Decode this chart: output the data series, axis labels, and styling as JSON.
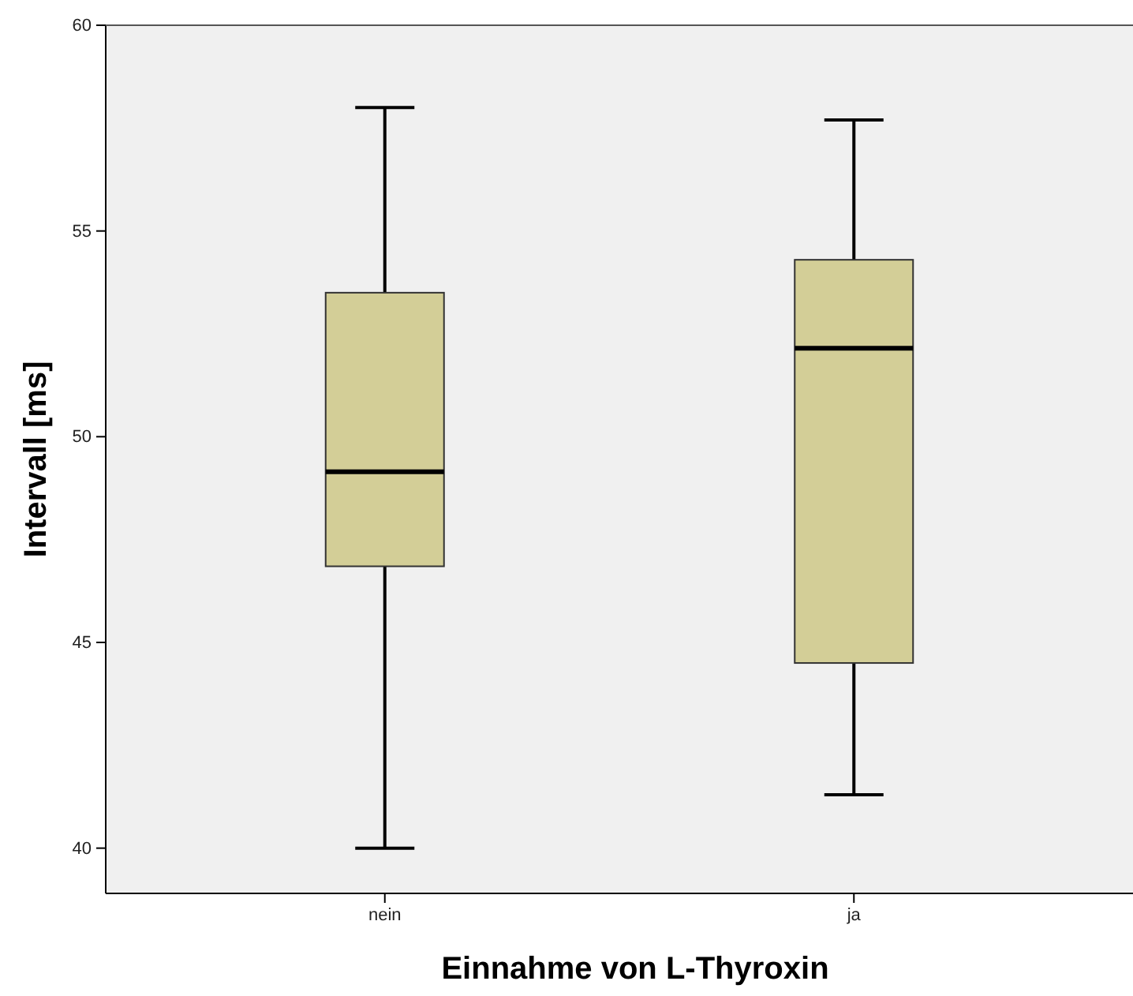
{
  "chart_data": {
    "type": "box",
    "xlabel": "Einnahme von L-Thyroxin",
    "ylabel": "Intervall [ms]",
    "categories": [
      "nein",
      "ja"
    ],
    "color": "#d3ce97",
    "ylim": [
      38.9,
      60
    ],
    "yticks": [
      40,
      45,
      50,
      55,
      60
    ],
    "boxes": [
      {
        "low": 40,
        "q1": 46.85,
        "median": 49.15,
        "q3": 53.5,
        "high": 58
      },
      {
        "low": 41.3,
        "q1": 44.5,
        "median": 52.15,
        "q3": 54.3,
        "high": 57.7
      }
    ]
  }
}
